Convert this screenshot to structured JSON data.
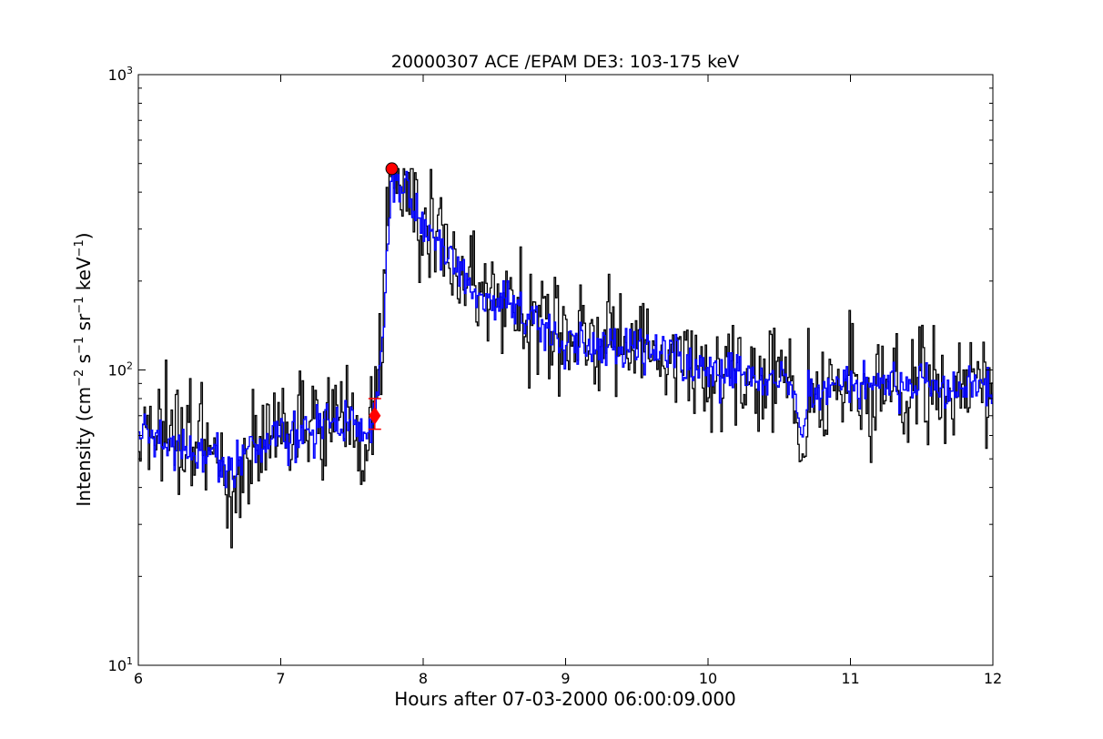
{
  "chart_data": {
    "type": "line",
    "title": "20000307 ACE /EPAM DE3: 103-175 keV",
    "xlabel": "Hours after 07-03-2000 06:00:09.000",
    "ylabel_parts": {
      "main": "Intensity (cm",
      "exp1": "−2",
      "p2": " s",
      "exp2": "−1",
      "p3": " sr",
      "exp3": "−1",
      "p4": " keV",
      "exp4": "−1",
      "close": ")"
    },
    "xlim": [
      6,
      12
    ],
    "ylim": [
      10,
      1000
    ],
    "yscale": "log",
    "grid": false,
    "x_ticks": [
      {
        "value": 6,
        "label": "6"
      },
      {
        "value": 7,
        "label": "7"
      },
      {
        "value": 8,
        "label": "8"
      },
      {
        "value": 9,
        "label": "9"
      },
      {
        "value": 10,
        "label": "10"
      },
      {
        "value": 11,
        "label": "11"
      },
      {
        "value": 12,
        "label": "12"
      }
    ],
    "y_ticks": [
      {
        "value": 10,
        "base": "10",
        "exp": "1"
      },
      {
        "value": 100,
        "base": "10",
        "exp": "2"
      },
      {
        "value": 1000,
        "base": "10",
        "exp": "3"
      }
    ],
    "series": [
      {
        "style": "steps",
        "color": "#000000",
        "points": [
          [
            6.0,
            70
          ],
          [
            6.1,
            64
          ],
          [
            6.2,
            58
          ],
          [
            6.3,
            55
          ],
          [
            6.4,
            55
          ],
          [
            6.5,
            53
          ],
          [
            6.6,
            45
          ],
          [
            6.65,
            36
          ],
          [
            6.7,
            48
          ],
          [
            6.8,
            55
          ],
          [
            6.9,
            59
          ],
          [
            7.0,
            61
          ],
          [
            7.1,
            58
          ],
          [
            7.2,
            62
          ],
          [
            7.3,
            63
          ],
          [
            7.4,
            65
          ],
          [
            7.5,
            67
          ],
          [
            7.55,
            64
          ],
          [
            7.6,
            60
          ],
          [
            7.62,
            66
          ],
          [
            7.65,
            72
          ],
          [
            7.68,
            88
          ],
          [
            7.7,
            115
          ],
          [
            7.72,
            175
          ],
          [
            7.74,
            260
          ],
          [
            7.76,
            380
          ],
          [
            7.78,
            440
          ],
          [
            7.8,
            460
          ],
          [
            7.85,
            440
          ],
          [
            7.9,
            410
          ],
          [
            7.95,
            370
          ],
          [
            8.0,
            315
          ],
          [
            8.1,
            280
          ],
          [
            8.2,
            245
          ],
          [
            8.3,
            205
          ],
          [
            8.4,
            185
          ],
          [
            8.5,
            175
          ],
          [
            8.6,
            170
          ],
          [
            8.7,
            160
          ],
          [
            8.8,
            148
          ],
          [
            9.0,
            125
          ],
          [
            9.2,
            122
          ],
          [
            9.4,
            125
          ],
          [
            9.5,
            120
          ],
          [
            9.6,
            118
          ],
          [
            9.8,
            110
          ],
          [
            10.0,
            100
          ],
          [
            10.2,
            97
          ],
          [
            10.4,
            95
          ],
          [
            10.6,
            92
          ],
          [
            10.65,
            50
          ],
          [
            10.7,
            85
          ],
          [
            10.8,
            88
          ],
          [
            11.0,
            90
          ],
          [
            11.2,
            88
          ],
          [
            11.4,
            88
          ],
          [
            11.5,
            92
          ],
          [
            11.6,
            88
          ],
          [
            11.8,
            84
          ],
          [
            11.9,
            90
          ],
          [
            12.0,
            88
          ]
        ],
        "noise": 0.22,
        "min_value": 25,
        "max_value": 480,
        "step_hours": 0.01
      },
      {
        "style": "steps",
        "color": "#0000ff",
        "points": [
          [
            6.0,
            62
          ],
          [
            6.1,
            60
          ],
          [
            6.2,
            57
          ],
          [
            6.3,
            54
          ],
          [
            6.4,
            54
          ],
          [
            6.5,
            53
          ],
          [
            6.6,
            48
          ],
          [
            6.65,
            44
          ],
          [
            6.7,
            50
          ],
          [
            6.8,
            57
          ],
          [
            6.9,
            60
          ],
          [
            7.0,
            60
          ],
          [
            7.1,
            58
          ],
          [
            7.2,
            62
          ],
          [
            7.3,
            62
          ],
          [
            7.4,
            64
          ],
          [
            7.5,
            66
          ],
          [
            7.55,
            63
          ],
          [
            7.6,
            58
          ],
          [
            7.62,
            65
          ],
          [
            7.65,
            70
          ],
          [
            7.68,
            86
          ],
          [
            7.7,
            112
          ],
          [
            7.72,
            170
          ],
          [
            7.74,
            255
          ],
          [
            7.76,
            370
          ],
          [
            7.78,
            430
          ],
          [
            7.8,
            450
          ],
          [
            7.85,
            430
          ],
          [
            7.9,
            400
          ],
          [
            7.95,
            360
          ],
          [
            8.0,
            305
          ],
          [
            8.1,
            272
          ],
          [
            8.2,
            240
          ],
          [
            8.3,
            200
          ],
          [
            8.4,
            182
          ],
          [
            8.5,
            172
          ],
          [
            8.6,
            166
          ],
          [
            8.7,
            156
          ],
          [
            8.8,
            145
          ],
          [
            9.0,
            123
          ],
          [
            9.2,
            120
          ],
          [
            9.4,
            122
          ],
          [
            9.5,
            118
          ],
          [
            9.6,
            115
          ],
          [
            9.8,
            108
          ],
          [
            10.0,
            99
          ],
          [
            10.2,
            96
          ],
          [
            10.4,
            93
          ],
          [
            10.6,
            90
          ],
          [
            10.65,
            58
          ],
          [
            10.7,
            84
          ],
          [
            10.8,
            87
          ],
          [
            11.0,
            88
          ],
          [
            11.2,
            87
          ],
          [
            11.4,
            87
          ],
          [
            11.5,
            90
          ],
          [
            11.6,
            87
          ],
          [
            11.8,
            83
          ],
          [
            11.9,
            88
          ],
          [
            12.0,
            86
          ]
        ],
        "noise": 0.09,
        "min_value": 40,
        "max_value": 470,
        "step_hours": 0.01
      }
    ],
    "markers": [
      {
        "type": "circle",
        "x": 7.78,
        "y": 480,
        "color": "#ff0000"
      },
      {
        "type": "diamond",
        "x": 7.66,
        "y": 70,
        "y_err": [
          63,
          80
        ],
        "color": "#ff0000"
      }
    ]
  }
}
